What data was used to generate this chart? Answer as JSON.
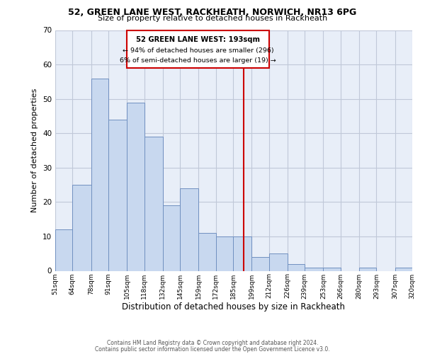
{
  "title": "52, GREEN LANE WEST, RACKHEATH, NORWICH, NR13 6PG",
  "subtitle": "Size of property relative to detached houses in Rackheath",
  "xlabel": "Distribution of detached houses by size in Rackheath",
  "ylabel": "Number of detached properties",
  "bar_color": "#c8d8ef",
  "bar_edge_color": "#7090c0",
  "background_color": "#ffffff",
  "axes_bg_color": "#e8eef8",
  "grid_color": "#c0c8d8",
  "bin_edges": [
    51,
    64,
    78,
    91,
    105,
    118,
    132,
    145,
    159,
    172,
    185,
    199,
    212,
    226,
    239,
    253,
    266,
    280,
    293,
    307,
    320
  ],
  "bin_labels": [
    "51sqm",
    "64sqm",
    "78sqm",
    "91sqm",
    "105sqm",
    "118sqm",
    "132sqm",
    "145sqm",
    "159sqm",
    "172sqm",
    "185sqm",
    "199sqm",
    "212sqm",
    "226sqm",
    "239sqm",
    "253sqm",
    "266sqm",
    "280sqm",
    "293sqm",
    "307sqm",
    "320sqm"
  ],
  "counts": [
    12,
    25,
    56,
    44,
    49,
    39,
    19,
    24,
    11,
    10,
    10,
    4,
    5,
    2,
    1,
    1,
    0,
    1,
    0,
    1
  ],
  "vline_x": 193,
  "vline_color": "#cc0000",
  "annotation_title": "52 GREEN LANE WEST: 193sqm",
  "annotation_line1": "← 94% of detached houses are smaller (296)",
  "annotation_line2": "6% of semi-detached houses are larger (19) →",
  "annotation_box_color": "#cc0000",
  "ylim": [
    0,
    70
  ],
  "yticks": [
    0,
    10,
    20,
    30,
    40,
    50,
    60,
    70
  ],
  "footnote1": "Contains HM Land Registry data © Crown copyright and database right 2024.",
  "footnote2": "Contains public sector information licensed under the Open Government Licence v3.0."
}
